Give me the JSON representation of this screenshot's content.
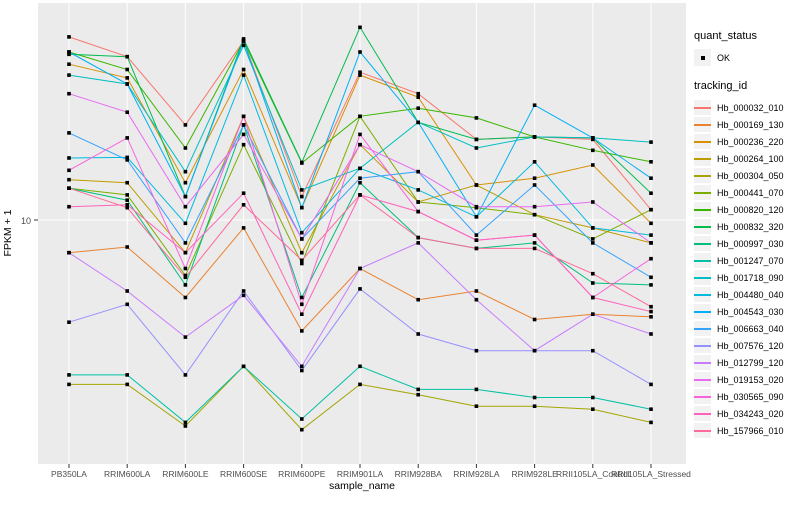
{
  "y_axis": {
    "label": "FPKM + 1",
    "tick": "10"
  },
  "x_axis": {
    "label": "sample_name"
  },
  "legend": {
    "quant_status_title": "quant_status",
    "quant_status_items": [
      {
        "label": "OK",
        "marker": "black-point"
      }
    ],
    "tracking_id_title": "tracking_id"
  },
  "panel": {
    "bg": "#ebebeb",
    "grid_color": "#ffffff",
    "tick_color": "#333333",
    "tick_label_color": "#4d4d4d"
  },
  "chart_data": {
    "type": "line",
    "title": "",
    "xlabel": "sample_name",
    "ylabel": "FPKM + 1",
    "y_scale": "log10",
    "ylim": [
      1.3,
      65
    ],
    "y_breaks": [
      10
    ],
    "grid": true,
    "legend_position": "right",
    "point_marker": "small black square (quant_status OK)",
    "categories": [
      "PB350LA",
      "RRIM600LA",
      "RRIM600LE",
      "RRIM600SE",
      "RRIM600PE",
      "RRIM901LA",
      "RRIM928BA",
      "RRIM928LA",
      "RRIM928LE",
      "RRII105LA_Control",
      "RRII105LA_Stressed"
    ],
    "series": [
      {
        "name": "Hb_000032_010",
        "color": "#F8766D",
        "values": [
          54,
          45,
          24,
          52,
          12.4,
          39,
          32,
          21,
          21.5,
          21,
          11
        ]
      },
      {
        "name": "Hb_000169_130",
        "color": "#EA8331",
        "values": [
          7.4,
          7.8,
          4.9,
          9.3,
          3.6,
          6.4,
          4.8,
          5.2,
          4.0,
          4.2,
          4.1
        ]
      },
      {
        "name": "Hb_000236_220",
        "color": "#D89000",
        "values": [
          42,
          37,
          14.1,
          40,
          11.2,
          38,
          31,
          13.8,
          14.7,
          16.6,
          9.7
        ]
      },
      {
        "name": "Hb_000264_100",
        "color": "#C09B00",
        "values": [
          14.5,
          14.1,
          7.4,
          26,
          7.4,
          20,
          11.8,
          13.8,
          10.5,
          9.3,
          8.1
        ]
      },
      {
        "name": "Hb_000304_050",
        "color": "#A3A500",
        "values": [
          2.2,
          2.2,
          1.5,
          2.6,
          1.45,
          2.2,
          2.0,
          1.8,
          1.8,
          1.75,
          1.55
        ]
      },
      {
        "name": "Hb_000441_070",
        "color": "#7CAE00",
        "values": [
          13.4,
          12.6,
          6.0,
          20,
          6.7,
          26,
          11.8,
          11.2,
          10.5,
          8.4,
          11
        ]
      },
      {
        "name": "Hb_000820_120",
        "color": "#39B600",
        "values": [
          47,
          40,
          19.4,
          52,
          16.9,
          26,
          28,
          25.6,
          21.5,
          19,
          17.1
        ]
      },
      {
        "name": "Hb_000832_320",
        "color": "#00BB4E",
        "values": [
          46,
          45,
          12.4,
          53,
          17,
          59,
          24.6,
          21,
          21.5,
          21.3,
          12.8
        ]
      },
      {
        "name": "Hb_000997_030",
        "color": "#00BF7D",
        "values": [
          13.4,
          12,
          5.5,
          24,
          4.9,
          14.1,
          8.5,
          7.7,
          8.1,
          5.6,
          5.5
        ]
      },
      {
        "name": "Hb_001247_070",
        "color": "#00C1A3",
        "values": [
          2.4,
          2.4,
          1.55,
          2.6,
          1.6,
          2.6,
          2.1,
          2.1,
          1.95,
          1.95,
          1.75
        ]
      },
      {
        "name": "Hb_001718_090",
        "color": "#00BFC4",
        "values": [
          38,
          35,
          15.6,
          50,
          13.2,
          16.1,
          24.6,
          19.4,
          21.5,
          21.3,
          20.5
        ]
      },
      {
        "name": "Hb_004480_040",
        "color": "#00BAE0",
        "values": [
          17.7,
          17.8,
          9.7,
          38,
          8.9,
          16.1,
          13.2,
          10.3,
          17.1,
          9.3,
          8.7
        ]
      },
      {
        "name": "Hb_004543_030",
        "color": "#00B0F6",
        "values": [
          47,
          35,
          12.4,
          52,
          11.2,
          47,
          24.6,
          10.3,
          28.8,
          21.3,
          14.7
        ]
      },
      {
        "name": "Hb_006663_040",
        "color": "#35A2FF",
        "values": [
          22.3,
          17.4,
          8.1,
          24,
          8.4,
          14.7,
          15.6,
          8.7,
          13.8,
          8.1,
          5.9
        ]
      },
      {
        "name": "Hb_007576_120",
        "color": "#9590FF",
        "values": [
          3.9,
          4.6,
          2.4,
          5.2,
          2.5,
          5.3,
          3.5,
          3.0,
          3.0,
          3.0,
          2.2
        ]
      },
      {
        "name": "Hb_012799_120",
        "color": "#C77CFF",
        "values": [
          7.4,
          5.2,
          3.4,
          5.0,
          2.6,
          6.4,
          8.1,
          4.8,
          3.0,
          4.2,
          3.5
        ]
      },
      {
        "name": "Hb_019153_020",
        "color": "#E76BF3",
        "values": [
          32,
          27,
          11.3,
          22,
          8.4,
          20,
          15.6,
          11.3,
          11.3,
          11.8,
          8.1
        ]
      },
      {
        "name": "Hb_030565_090",
        "color": "#FA62DB",
        "values": [
          15.8,
          21.3,
          6.4,
          26,
          4.6,
          22,
          10.8,
          8.3,
          8.7,
          4.9,
          7.0
        ]
      },
      {
        "name": "Hb_034243_020",
        "color": "#FF62BC",
        "values": [
          11.3,
          11.5,
          7.4,
          12.8,
          4.2,
          12.6,
          10.8,
          8.3,
          8.7,
          4.9,
          4.3
        ]
      },
      {
        "name": "Hb_157966_010",
        "color": "#FF6A98",
        "values": [
          13.4,
          11.2,
          5.9,
          11.5,
          6.9,
          12.6,
          8.5,
          7.7,
          7.7,
          6.1,
          4.5
        ]
      }
    ]
  }
}
